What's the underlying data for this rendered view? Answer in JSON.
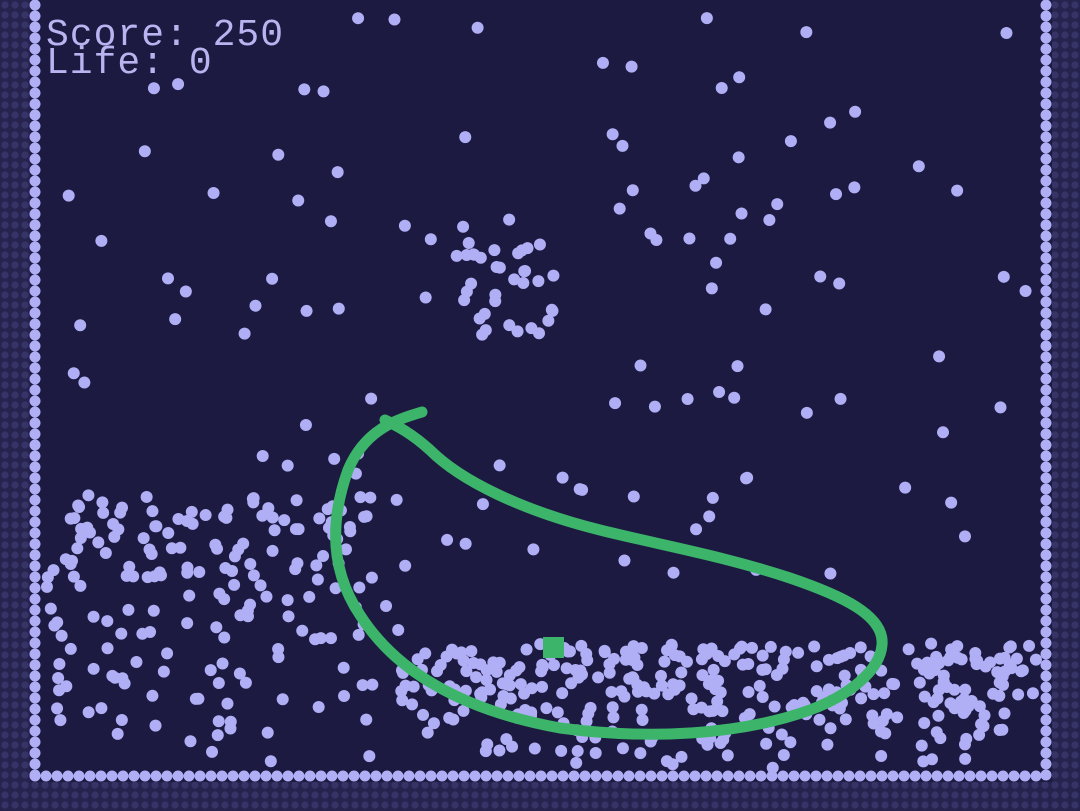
{
  "hud": {
    "score_label": "Score: 250",
    "life_label": "Life: 0"
  },
  "colors": {
    "background": "#1c1a40",
    "border": "#2f2c60",
    "particle": "#b0aef5",
    "drawn_line": "#3cb46a",
    "player": "#3cb46a"
  },
  "icons": {
    "player": "green-square",
    "drawn_line": "hand-drawn-barrier-curve"
  }
}
